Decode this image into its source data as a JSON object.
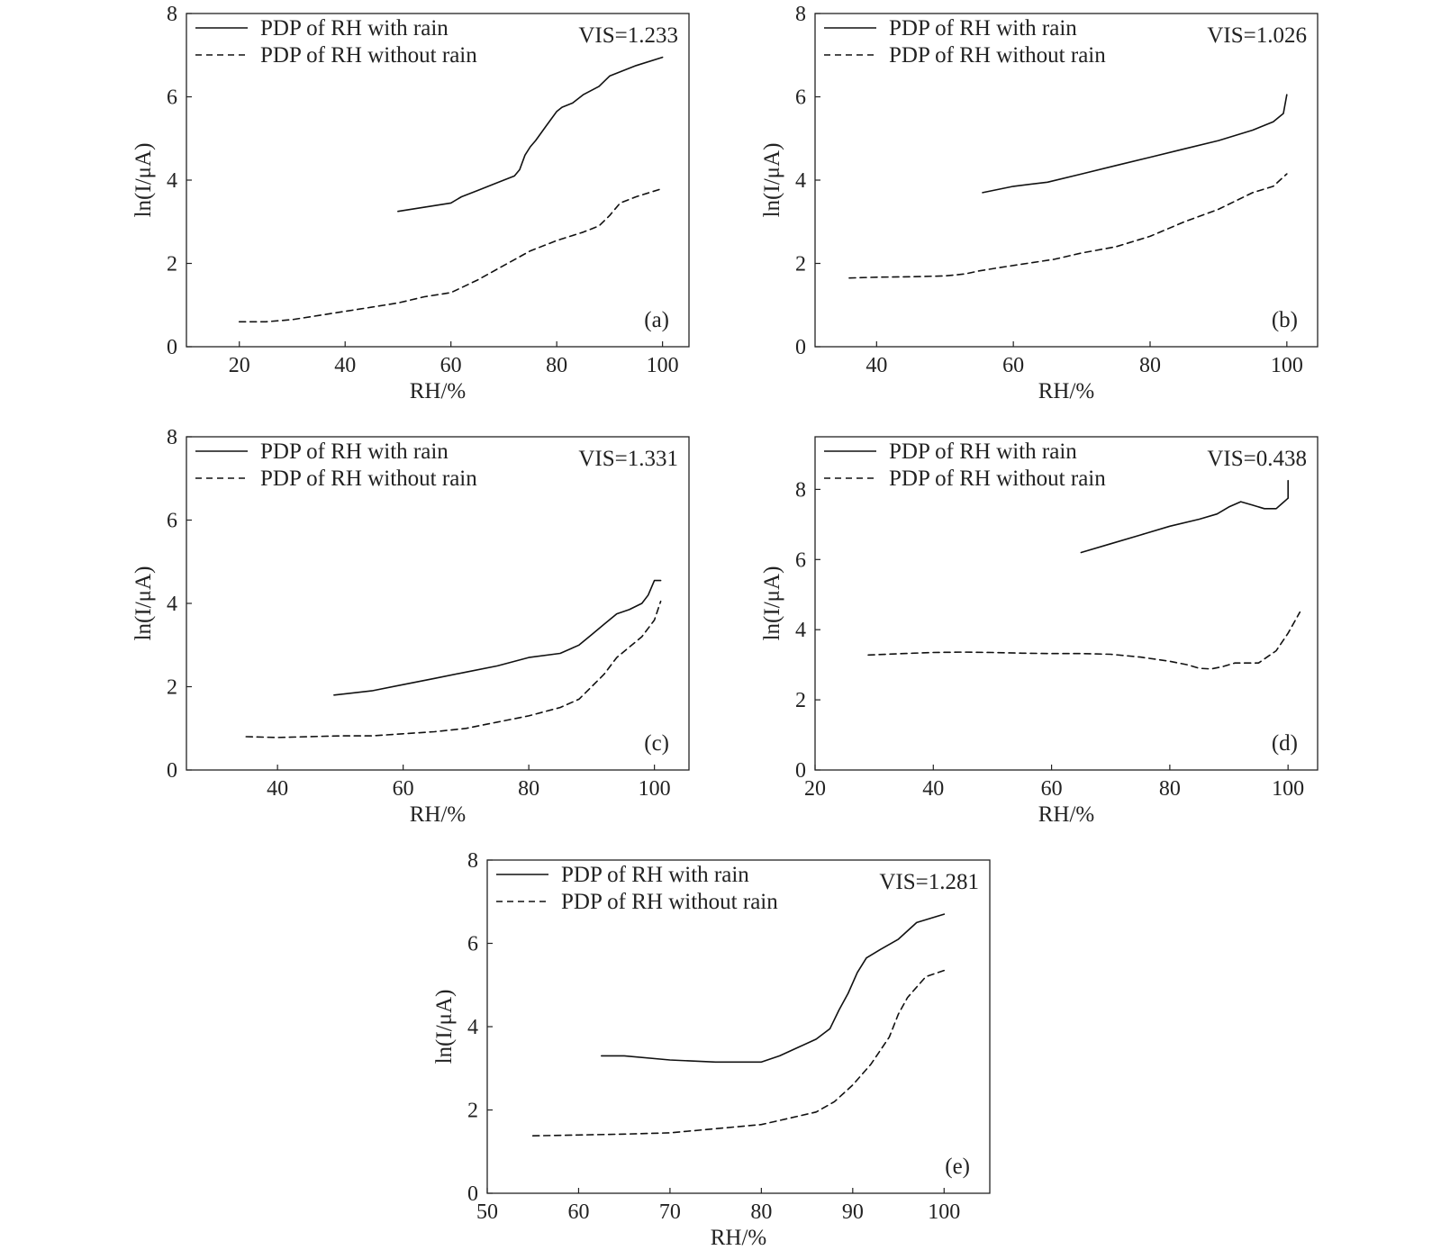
{
  "figure": {
    "legend": {
      "with_rain": "PDP of RH with rain",
      "without_rain": "PDP of RH without rain"
    }
  },
  "chart_data": [
    {
      "type": "line",
      "panel": "(a)",
      "annotation": "VIS=1.233",
      "xlabel": "RH/%",
      "ylabel": "ln(I/μA)",
      "xlim": [
        10,
        105
      ],
      "ylim": [
        0,
        8
      ],
      "xticks": [
        "20",
        "40",
        "60",
        "80",
        "100"
      ],
      "yticks": [
        "0",
        "2",
        "4",
        "6",
        "8"
      ],
      "grid": false,
      "legend_position": "top-left",
      "series": [
        {
          "name": "PDP of RH with rain",
          "line_style": "solid",
          "x": [
            50,
            55,
            60,
            62,
            65,
            68,
            70,
            72,
            73,
            74,
            75,
            76,
            78,
            80,
            81,
            83,
            85,
            88,
            90,
            92,
            95,
            100
          ],
          "y": [
            3.25,
            3.35,
            3.45,
            3.6,
            3.75,
            3.9,
            4.0,
            4.1,
            4.25,
            4.6,
            4.8,
            4.95,
            5.3,
            5.65,
            5.75,
            5.85,
            6.05,
            6.25,
            6.5,
            6.6,
            6.75,
            6.95
          ]
        },
        {
          "name": "PDP of RH without rain",
          "line_style": "dashed",
          "x": [
            20,
            25,
            30,
            35,
            40,
            45,
            50,
            55,
            60,
            65,
            70,
            75,
            80,
            85,
            88,
            90,
            92,
            95,
            100
          ],
          "y": [
            0.6,
            0.6,
            0.65,
            0.75,
            0.85,
            0.95,
            1.05,
            1.2,
            1.3,
            1.6,
            1.95,
            2.3,
            2.55,
            2.75,
            2.9,
            3.15,
            3.45,
            3.6,
            3.8
          ]
        }
      ]
    },
    {
      "type": "line",
      "panel": "(b)",
      "annotation": "VIS=1.026",
      "xlabel": "RH/%",
      "ylabel": "ln(I/μA)",
      "xlim": [
        31,
        104.5
      ],
      "ylim": [
        0,
        8
      ],
      "xticks": [
        "40",
        "60",
        "80",
        "100"
      ],
      "yticks": [
        "0",
        "2",
        "4",
        "6",
        "8"
      ],
      "grid": false,
      "legend_position": "top-left",
      "series": [
        {
          "name": "PDP of RH with rain",
          "line_style": "solid",
          "x": [
            55.5,
            60,
            65,
            70,
            75,
            80,
            85,
            90,
            95,
            98,
            99.5,
            100
          ],
          "y": [
            3.7,
            3.85,
            3.95,
            4.15,
            4.35,
            4.55,
            4.75,
            4.95,
            5.2,
            5.4,
            5.6,
            6.05
          ]
        },
        {
          "name": "PDP of RH without rain",
          "line_style": "dashed",
          "x": [
            36,
            40,
            45,
            50,
            53,
            55,
            58,
            62,
            66,
            70,
            75,
            80,
            85,
            90,
            95,
            98,
            100
          ],
          "y": [
            1.65,
            1.67,
            1.68,
            1.7,
            1.75,
            1.82,
            1.9,
            2.0,
            2.1,
            2.25,
            2.4,
            2.65,
            3.0,
            3.3,
            3.7,
            3.85,
            4.15
          ]
        }
      ]
    },
    {
      "type": "line",
      "panel": "(c)",
      "annotation": "VIS=1.331",
      "xlabel": "RH/%",
      "ylabel": "ln(I/μA)",
      "xlim": [
        25.5,
        105.5
      ],
      "ylim": [
        0,
        8
      ],
      "xticks": [
        "40",
        "60",
        "80",
        "100"
      ],
      "yticks": [
        "0",
        "2",
        "4",
        "6",
        "8"
      ],
      "grid": false,
      "legend_position": "top-left",
      "series": [
        {
          "name": "PDP of RH with rain",
          "line_style": "solid",
          "x": [
            49,
            55,
            60,
            65,
            70,
            75,
            80,
            85,
            88,
            90,
            92,
            94,
            96,
            98,
            99,
            100,
            101
          ],
          "y": [
            1.8,
            1.9,
            2.05,
            2.2,
            2.35,
            2.5,
            2.7,
            2.8,
            3.0,
            3.25,
            3.5,
            3.75,
            3.85,
            4.0,
            4.2,
            4.55,
            4.55
          ]
        },
        {
          "name": "PDP of RH without rain",
          "line_style": "dashed",
          "x": [
            35,
            40,
            45,
            50,
            55,
            60,
            65,
            70,
            75,
            80,
            85,
            88,
            90,
            92,
            94,
            96,
            98,
            100,
            101
          ],
          "y": [
            0.8,
            0.78,
            0.8,
            0.82,
            0.82,
            0.87,
            0.92,
            1.0,
            1.15,
            1.3,
            1.5,
            1.7,
            2.0,
            2.3,
            2.7,
            2.95,
            3.2,
            3.6,
            4.05
          ]
        }
      ]
    },
    {
      "type": "line",
      "panel": "(d)",
      "annotation": "VIS=0.438",
      "xlabel": "RH/%",
      "ylabel": "ln(I/μA)",
      "xlim": [
        20,
        105
      ],
      "ylim": [
        0,
        9.5
      ],
      "xticks": [
        "20",
        "40",
        "60",
        "80",
        "100"
      ],
      "yticks": [
        "0",
        "2",
        "4",
        "6",
        "8"
      ],
      "grid": false,
      "legend_position": "top-left",
      "series": [
        {
          "name": "PDP of RH with rain",
          "line_style": "solid",
          "x": [
            65,
            70,
            75,
            80,
            85,
            88,
            90,
            92,
            94,
            96,
            98,
            99,
            100,
            100
          ],
          "y": [
            6.2,
            6.45,
            6.7,
            6.95,
            7.15,
            7.3,
            7.5,
            7.65,
            7.55,
            7.45,
            7.45,
            7.6,
            7.75,
            8.25
          ]
        },
        {
          "name": "PDP of RH without rain",
          "line_style": "dashed",
          "x": [
            29,
            35,
            40,
            45,
            50,
            55,
            60,
            65,
            70,
            75,
            80,
            83,
            85,
            87,
            89,
            91,
            95,
            98,
            100,
            102
          ],
          "y": [
            3.28,
            3.32,
            3.35,
            3.36,
            3.35,
            3.33,
            3.32,
            3.32,
            3.3,
            3.22,
            3.1,
            3.0,
            2.9,
            2.88,
            2.95,
            3.05,
            3.05,
            3.4,
            3.9,
            4.5
          ]
        }
      ]
    },
    {
      "type": "line",
      "panel": "(e)",
      "annotation": "VIS=1.281",
      "xlabel": "RH/%",
      "ylabel": "ln(I/μA)",
      "xlim": [
        50,
        105
      ],
      "ylim": [
        0,
        8
      ],
      "xticks": [
        "50",
        "60",
        "70",
        "80",
        "90",
        "100"
      ],
      "yticks": [
        "0",
        "2",
        "4",
        "6",
        "8"
      ],
      "grid": false,
      "legend_position": "top-left",
      "series": [
        {
          "name": "PDP of RH with rain",
          "line_style": "solid",
          "x": [
            62.5,
            65,
            70,
            75,
            80,
            82,
            84,
            86,
            87.5,
            88.5,
            89.5,
            90.5,
            91.5,
            93,
            95,
            97,
            100
          ],
          "y": [
            3.3,
            3.3,
            3.2,
            3.15,
            3.15,
            3.3,
            3.5,
            3.7,
            3.95,
            4.4,
            4.8,
            5.3,
            5.65,
            5.85,
            6.1,
            6.5,
            6.7
          ]
        },
        {
          "name": "PDP of RH without rain",
          "line_style": "dashed",
          "x": [
            55,
            60,
            65,
            70,
            75,
            80,
            83,
            86,
            88,
            90,
            92,
            94,
            95,
            96,
            98,
            100
          ],
          "y": [
            1.38,
            1.4,
            1.42,
            1.45,
            1.55,
            1.65,
            1.8,
            1.95,
            2.2,
            2.6,
            3.1,
            3.75,
            4.3,
            4.7,
            5.2,
            5.35
          ]
        }
      ]
    }
  ]
}
